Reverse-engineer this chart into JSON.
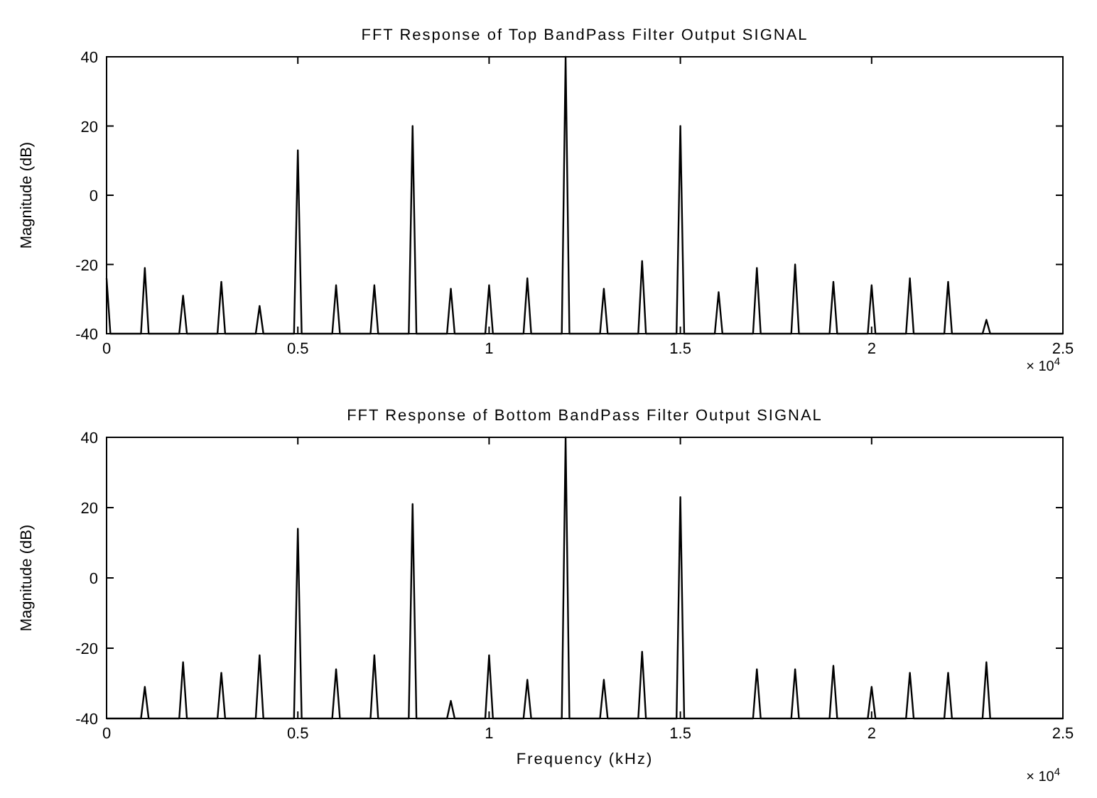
{
  "chart_data": [
    {
      "type": "line",
      "title": "FFT Response of Top BandPass Filter Output SIGNAL",
      "ylabel": "Magnitude (dB)",
      "annotations": [
        "× 10$^{4}$"
      ],
      "marker": "none",
      "line_style": "solid",
      "grid": false,
      "xlim": [
        0,
        2.5
      ],
      "xticks": [
        0,
        0.5,
        1,
        1.5,
        2,
        2.5
      ],
      "ylim": [
        -40,
        40
      ],
      "yticks": [
        -40,
        -20,
        0,
        20,
        40
      ],
      "series": [
        {
          "color": "#000000",
          "x": [
            0,
            0.01,
            0.09,
            0.1,
            0.11,
            0.19,
            0.2,
            0.21,
            0.29,
            0.3,
            0.31,
            0.39,
            0.4,
            0.41,
            0.49,
            0.5,
            0.51,
            0.59,
            0.6,
            0.61,
            0.69,
            0.7,
            0.71,
            0.79,
            0.8,
            0.81,
            0.89,
            0.9,
            0.91,
            0.99,
            1,
            1.01,
            1.09,
            1.1,
            1.11,
            1.19,
            1.2,
            1.21,
            1.29,
            1.3,
            1.31,
            1.39,
            1.4,
            1.41,
            1.49,
            1.5,
            1.51,
            1.59,
            1.6,
            1.61,
            1.69,
            1.7,
            1.71,
            1.79,
            1.8,
            1.81,
            1.89,
            1.9,
            1.91,
            1.99,
            2,
            2.01,
            2.09,
            2.1,
            2.11,
            2.19,
            2.2,
            2.21,
            2.29,
            2.3,
            2.31,
            2.5
          ],
          "values": [
            -24,
            -40,
            -40,
            -21,
            -40,
            -40,
            -29,
            -40,
            -40,
            -25,
            -40,
            -40,
            -32,
            -40,
            -40,
            13,
            -40,
            -40,
            -26,
            -40,
            -40,
            -26,
            -40,
            -40,
            20,
            -40,
            -40,
            -27,
            -40,
            -40,
            -26,
            -40,
            -40,
            -24,
            -40,
            -40,
            40,
            -40,
            -40,
            -27,
            -40,
            -40,
            -19,
            -40,
            -40,
            20,
            -40,
            -40,
            -28,
            -40,
            -40,
            -21,
            -40,
            -40,
            -20,
            -40,
            -40,
            -25,
            -40,
            -40,
            -26,
            -40,
            -40,
            -24,
            -40,
            -40,
            -25,
            -40,
            -40,
            -36,
            -40,
            -40
          ]
        }
      ]
    },
    {
      "type": "line",
      "title": "FFT Response of Bottom BandPass Filter Output SIGNAL",
      "xlabel": "Frequency (kHz)",
      "ylabel": "Magnitude (dB)",
      "annotations": [
        "× 10$^{4}$"
      ],
      "marker": "none",
      "line_style": "solid",
      "grid": false,
      "xlim": [
        0,
        2.5
      ],
      "xticks": [
        0,
        0.5,
        1,
        1.5,
        2,
        2.5
      ],
      "ylim": [
        -40,
        40
      ],
      "yticks": [
        -40,
        -20,
        0,
        20,
        40
      ],
      "series": [
        {
          "color": "#000000",
          "x": [
            0,
            0.09,
            0.1,
            0.11,
            0.19,
            0.2,
            0.21,
            0.29,
            0.3,
            0.31,
            0.39,
            0.4,
            0.41,
            0.49,
            0.5,
            0.51,
            0.59,
            0.6,
            0.61,
            0.69,
            0.7,
            0.71,
            0.79,
            0.8,
            0.81,
            0.89,
            0.9,
            0.91,
            0.99,
            1,
            1.01,
            1.09,
            1.1,
            1.11,
            1.19,
            1.2,
            1.21,
            1.29,
            1.3,
            1.31,
            1.39,
            1.4,
            1.41,
            1.49,
            1.5,
            1.51,
            1.69,
            1.7,
            1.71,
            1.79,
            1.8,
            1.81,
            1.89,
            1.9,
            1.91,
            1.99,
            2,
            2.01,
            2.09,
            2.1,
            2.11,
            2.19,
            2.2,
            2.21,
            2.29,
            2.3,
            2.31,
            2.5
          ],
          "values": [
            -40,
            -40,
            -31,
            -40,
            -40,
            -24,
            -40,
            -40,
            -27,
            -40,
            -40,
            -22,
            -40,
            -40,
            14,
            -40,
            -40,
            -26,
            -40,
            -40,
            -22,
            -40,
            -40,
            21,
            -40,
            -40,
            -35,
            -40,
            -40,
            -22,
            -40,
            -40,
            -29,
            -40,
            -40,
            40,
            -40,
            -40,
            -29,
            -40,
            -40,
            -21,
            -40,
            -40,
            23,
            -40,
            -40,
            -26,
            -40,
            -40,
            -26,
            -40,
            -40,
            -25,
            -40,
            -40,
            -31,
            -40,
            -40,
            -27,
            -40,
            -40,
            -27,
            -40,
            -40,
            -24,
            -40,
            -40
          ]
        }
      ]
    }
  ]
}
